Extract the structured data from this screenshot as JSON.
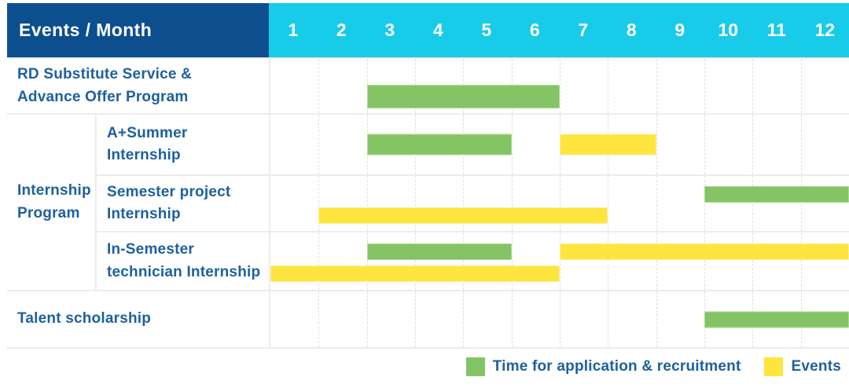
{
  "header": {
    "corner_label": "Events / Month",
    "months": [
      "1",
      "2",
      "3",
      "4",
      "5",
      "6",
      "7",
      "8",
      "9",
      "10",
      "11",
      "12"
    ]
  },
  "colors": {
    "header_bg": "#0d4e8f",
    "months_bg": "#18cbe9",
    "label_text": "#1e609f",
    "bar_green": "#85c464",
    "bar_yellow": "#fde53e"
  },
  "legend": {
    "items": [
      {
        "color_key": "green",
        "label": "Time for application & recruitment"
      },
      {
        "color_key": "yellow",
        "label": "Events"
      }
    ]
  },
  "chart_data": {
    "type": "gantt",
    "title": "Events / Month",
    "x_unit": "month",
    "x_ticks": [
      "1",
      "2",
      "3",
      "4",
      "5",
      "6",
      "7",
      "8",
      "9",
      "10",
      "11",
      "12"
    ],
    "x_range": [
      1,
      12
    ],
    "series_legend": [
      {
        "name": "Time for application & recruitment",
        "color_key": "green",
        "color": "#85c464"
      },
      {
        "name": "Events",
        "color_key": "yellow",
        "color": "#fde53e"
      }
    ],
    "group_label": "Internship Program",
    "group_label_lines": [
      "Internship",
      "Program"
    ],
    "rows": [
      {
        "group": null,
        "label": "RD Substitute Service & Advance Offer Program",
        "label_lines": [
          "RD Substitute Service &",
          "Advance Offer Program"
        ],
        "bars": [
          {
            "series": "Time for application & recruitment",
            "color_key": "green",
            "start_month": 3,
            "end_month": 6,
            "lane": "single"
          }
        ]
      },
      {
        "group": "Internship Program",
        "label": "A+Summer Internship",
        "label_lines": [
          "A+Summer",
          "Internship"
        ],
        "bars": [
          {
            "series": "Time for application & recruitment",
            "color_key": "green",
            "start_month": 3,
            "end_month": 5,
            "lane": "single"
          },
          {
            "series": "Events",
            "color_key": "yellow",
            "start_month": 7,
            "end_month": 8,
            "lane": "single"
          }
        ]
      },
      {
        "group": "Internship Program",
        "label": "Semester project Internship",
        "label_lines": [
          "Semester project",
          "Internship"
        ],
        "bars": [
          {
            "series": "Time for application & recruitment",
            "color_key": "green",
            "start_month": 10,
            "end_month": 12,
            "lane": "upper"
          },
          {
            "series": "Events",
            "color_key": "yellow",
            "start_month": 2,
            "end_month": 7,
            "lane": "lower"
          }
        ]
      },
      {
        "group": "Internship Program",
        "label": "In-Semester technician Internship",
        "label_lines": [
          "In-Semester",
          "technician Internship"
        ],
        "bars": [
          {
            "series": "Time for application & recruitment",
            "color_key": "green",
            "start_month": 3,
            "end_month": 5,
            "lane": "upper"
          },
          {
            "series": "Events",
            "color_key": "yellow",
            "start_month": 7,
            "end_month": 12,
            "lane": "upper"
          },
          {
            "series": "Events",
            "color_key": "yellow",
            "start_month": 1,
            "end_month": 6,
            "lane": "lower"
          }
        ]
      },
      {
        "group": null,
        "label": "Talent scholarship",
        "label_lines": [
          "Talent scholarship"
        ],
        "bars": [
          {
            "series": "Time for application & recruitment",
            "color_key": "green",
            "start_month": 10,
            "end_month": 12,
            "lane": "single"
          }
        ]
      }
    ]
  }
}
